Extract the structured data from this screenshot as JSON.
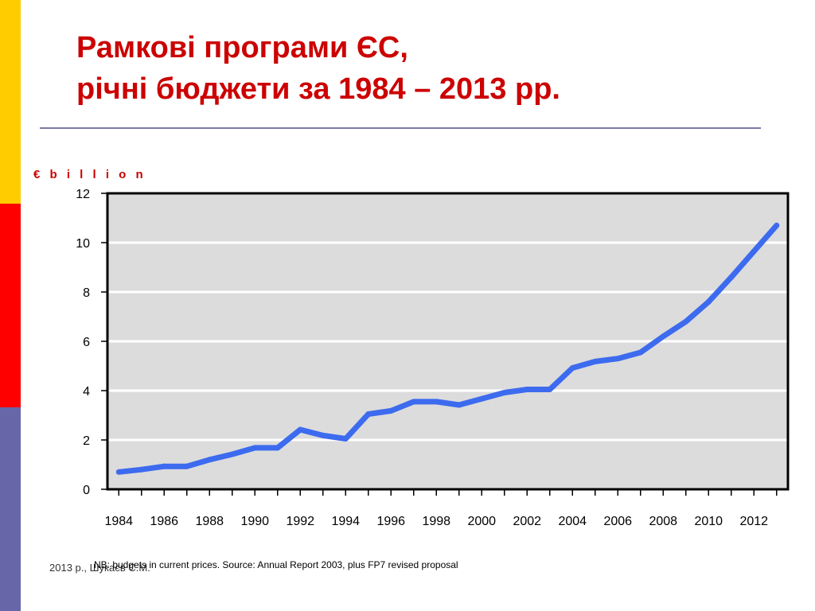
{
  "slide": {
    "title": "Рамкові програми ЄС,\nрічні бюджети за 1984 – 2013 рр.",
    "footnote": "NB: budgets in current prices. Source: Annual Report 2003, plus FP7 revised proposal",
    "author": "2013 р., Шукаєв С.М.",
    "colors": {
      "title": "#cc0000",
      "sidebar_top": "#ffcc00",
      "sidebar_middle": "#ff0000",
      "sidebar_bottom": "#6666a8",
      "line": "#3d6bef",
      "plot_background": "#dcdcdc",
      "unit_label": "#cc0000"
    }
  },
  "chart_data": {
    "type": "line",
    "title": "",
    "xlabel": "",
    "ylabel": "€ b i l l i o n",
    "xlim": [
      1983.5,
      2013.5
    ],
    "ylim": [
      0,
      12
    ],
    "yticks": [
      0,
      2,
      4,
      6,
      8,
      10,
      12
    ],
    "xticks": [
      1984,
      1986,
      1988,
      1990,
      1992,
      1994,
      1996,
      1998,
      2000,
      2002,
      2004,
      2006,
      2008,
      2010,
      2012
    ],
    "grid": true,
    "legend": "none",
    "series": [
      {
        "name": "",
        "x": [
          1984,
          1985,
          1986,
          1987,
          1988,
          1989,
          1990,
          1991,
          1992,
          1993,
          1994,
          1995,
          1996,
          1997,
          1998,
          1999,
          2000,
          2001,
          2002,
          2003,
          2004,
          2005,
          2006,
          2007,
          2008,
          2009,
          2010,
          2011,
          2012,
          2013
        ],
        "values": [
          0.7,
          0.8,
          0.93,
          0.93,
          1.2,
          1.42,
          1.68,
          1.68,
          2.42,
          2.18,
          2.05,
          3.05,
          3.18,
          3.55,
          3.55,
          3.42,
          3.67,
          3.92,
          4.05,
          4.05,
          4.92,
          5.18,
          5.3,
          5.55,
          6.2,
          6.8,
          7.6,
          8.6,
          9.65,
          10.7
        ]
      }
    ]
  }
}
